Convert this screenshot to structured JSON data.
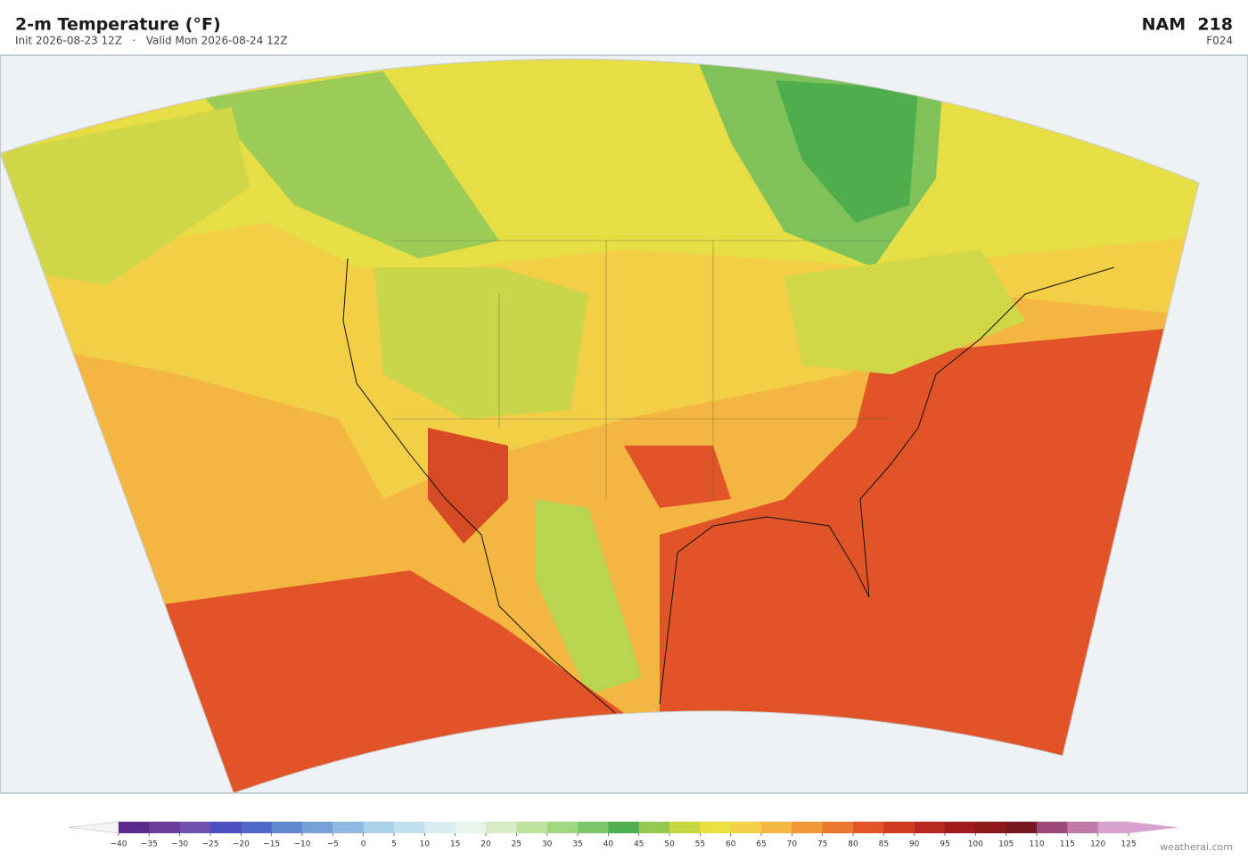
{
  "header": {
    "title": "2-m Temperature  (°F)",
    "subtitle": "Init 2026-08-23 12Z   ·   Valid Mon 2026-08-24 12Z",
    "model": "NAM  218",
    "forecast_hour": "F024"
  },
  "colorbar": {
    "ticks": [
      {
        "value": -40,
        "label": "−40"
      },
      {
        "value": -35,
        "label": "−35"
      },
      {
        "value": -30,
        "label": "−30"
      },
      {
        "value": -25,
        "label": "−25"
      },
      {
        "value": -20,
        "label": "−20"
      },
      {
        "value": -15,
        "label": "−15"
      },
      {
        "value": -10,
        "label": "−10"
      },
      {
        "value": -5,
        "label": "−5"
      },
      0,
      5,
      10,
      15,
      20,
      25,
      30,
      35,
      40,
      45,
      50,
      55,
      60,
      65,
      70,
      75,
      80,
      85,
      90,
      95,
      100,
      105,
      110,
      115,
      120,
      125
    ],
    "colors": [
      "#5b2a8f",
      "#6a3d9a",
      "#7050b0",
      "#4b4fc0",
      "#5068c8",
      "#6088d0",
      "#78a0d8",
      "#90b8e0",
      "#a8d0e8",
      "#c0e0ee",
      "#d8ecf2",
      "#e8f4ec",
      "#d8ecc8",
      "#bce4a0",
      "#a0d880",
      "#7cc868",
      "#50b050",
      "#94c850",
      "#c8d840",
      "#ece040",
      "#f4d048",
      "#f4b840",
      "#f09838",
      "#ec7830",
      "#e05428",
      "#d03c20",
      "#b82820",
      "#a01c1c",
      "#8c1818",
      "#781820",
      "#9c4878",
      "#c07aa8",
      "#d8a0cc"
    ],
    "under_color": "#f4f4f4",
    "over_color": "#d8a0cc"
  },
  "watermark": "weatherai.com"
}
